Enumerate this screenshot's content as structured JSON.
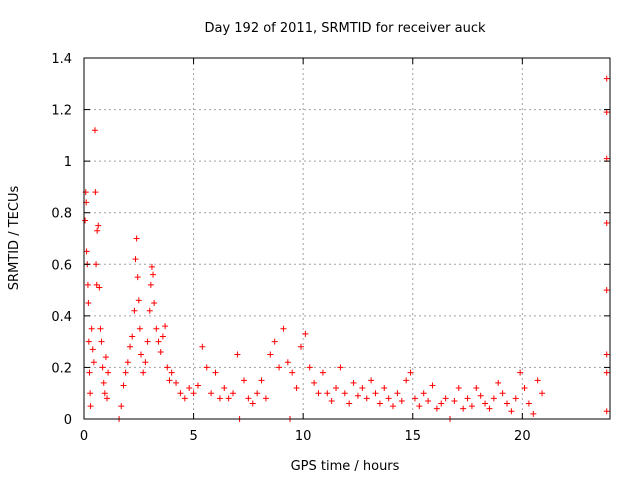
{
  "chart_data": {
    "type": "scatter",
    "title": "Day 192 of 2011, SRMTID for receiver auck",
    "xlabel": "GPS time / hours",
    "ylabel": "SRMTID / TECUs",
    "xlim": [
      0,
      24
    ],
    "ylim": [
      0,
      1.4
    ],
    "xticks": [
      0,
      5,
      10,
      15,
      20
    ],
    "xtick_labels": [
      "0",
      "5",
      "10",
      "15",
      "20"
    ],
    "yticks": [
      0,
      0.2,
      0.4,
      0.6,
      0.8,
      1,
      1.2,
      1.4
    ],
    "ytick_labels": [
      "0",
      "0.2",
      "0.4",
      "0.6",
      "0.8",
      "1",
      "1.2",
      "1.4"
    ],
    "grid": true,
    "marker": "plus",
    "color": "#ff0000",
    "points": [
      [
        0.05,
        0.77
      ],
      [
        0.08,
        0.88
      ],
      [
        0.1,
        0.84
      ],
      [
        0.12,
        0.65
      ],
      [
        0.15,
        0.6
      ],
      [
        0.18,
        0.52
      ],
      [
        0.2,
        0.45
      ],
      [
        0.22,
        0.3
      ],
      [
        0.25,
        0.18
      ],
      [
        0.28,
        0.1
      ],
      [
        0.3,
        0.05
      ],
      [
        0.35,
        0.35
      ],
      [
        0.4,
        0.27
      ],
      [
        0.45,
        0.22
      ],
      [
        0.5,
        1.12
      ],
      [
        0.52,
        0.88
      ],
      [
        0.55,
        0.6
      ],
      [
        0.58,
        0.52
      ],
      [
        0.6,
        0.73
      ],
      [
        0.65,
        0.75
      ],
      [
        0.7,
        0.51
      ],
      [
        0.75,
        0.35
      ],
      [
        0.8,
        0.3
      ],
      [
        0.85,
        0.2
      ],
      [
        0.9,
        0.14
      ],
      [
        0.95,
        0.1
      ],
      [
        1.0,
        0.24
      ],
      [
        1.05,
        0.08
      ],
      [
        1.1,
        0.18
      ],
      [
        1.6,
        0.0
      ],
      [
        1.7,
        0.05
      ],
      [
        1.8,
        0.13
      ],
      [
        1.9,
        0.18
      ],
      [
        2.0,
        0.22
      ],
      [
        2.1,
        0.28
      ],
      [
        2.2,
        0.32
      ],
      [
        2.3,
        0.42
      ],
      [
        2.35,
        0.62
      ],
      [
        2.4,
        0.7
      ],
      [
        2.45,
        0.55
      ],
      [
        2.5,
        0.46
      ],
      [
        2.55,
        0.35
      ],
      [
        2.6,
        0.25
      ],
      [
        2.7,
        0.18
      ],
      [
        2.8,
        0.22
      ],
      [
        2.9,
        0.3
      ],
      [
        3.0,
        0.42
      ],
      [
        3.05,
        0.52
      ],
      [
        3.1,
        0.59
      ],
      [
        3.15,
        0.56
      ],
      [
        3.2,
        0.45
      ],
      [
        3.3,
        0.35
      ],
      [
        3.4,
        0.3
      ],
      [
        3.5,
        0.26
      ],
      [
        3.6,
        0.32
      ],
      [
        3.7,
        0.36
      ],
      [
        3.8,
        0.2
      ],
      [
        3.9,
        0.15
      ],
      [
        4.0,
        0.18
      ],
      [
        4.2,
        0.14
      ],
      [
        4.4,
        0.1
      ],
      [
        4.6,
        0.08
      ],
      [
        4.8,
        0.12
      ],
      [
        5.0,
        0.1
      ],
      [
        5.2,
        0.13
      ],
      [
        5.4,
        0.28
      ],
      [
        5.6,
        0.2
      ],
      [
        5.8,
        0.1
      ],
      [
        6.0,
        0.18
      ],
      [
        6.2,
        0.08
      ],
      [
        6.4,
        0.12
      ],
      [
        6.6,
        0.08
      ],
      [
        6.8,
        0.1
      ],
      [
        7.0,
        0.25
      ],
      [
        7.1,
        0.0
      ],
      [
        7.3,
        0.15
      ],
      [
        7.5,
        0.08
      ],
      [
        7.7,
        0.06
      ],
      [
        7.9,
        0.1
      ],
      [
        8.1,
        0.15
      ],
      [
        8.3,
        0.08
      ],
      [
        8.5,
        0.25
      ],
      [
        8.7,
        0.3
      ],
      [
        8.9,
        0.2
      ],
      [
        9.1,
        0.35
      ],
      [
        9.3,
        0.22
      ],
      [
        9.4,
        0.0
      ],
      [
        9.5,
        0.18
      ],
      [
        9.7,
        0.12
      ],
      [
        9.9,
        0.28
      ],
      [
        10.1,
        0.33
      ],
      [
        10.3,
        0.2
      ],
      [
        10.5,
        0.14
      ],
      [
        10.7,
        0.1
      ],
      [
        10.9,
        0.18
      ],
      [
        11.1,
        0.1
      ],
      [
        11.3,
        0.07
      ],
      [
        11.5,
        0.12
      ],
      [
        11.7,
        0.2
      ],
      [
        11.9,
        0.1
      ],
      [
        12.1,
        0.06
      ],
      [
        12.3,
        0.14
      ],
      [
        12.5,
        0.09
      ],
      [
        12.7,
        0.12
      ],
      [
        12.9,
        0.08
      ],
      [
        13.1,
        0.15
      ],
      [
        13.3,
        0.1
      ],
      [
        13.5,
        0.06
      ],
      [
        13.7,
        0.12
      ],
      [
        13.9,
        0.08
      ],
      [
        14.1,
        0.05
      ],
      [
        14.3,
        0.1
      ],
      [
        14.5,
        0.07
      ],
      [
        14.7,
        0.15
      ],
      [
        14.9,
        0.18
      ],
      [
        15.1,
        0.08
      ],
      [
        15.3,
        0.05
      ],
      [
        15.5,
        0.1
      ],
      [
        15.7,
        0.07
      ],
      [
        15.9,
        0.13
      ],
      [
        16.1,
        0.04
      ],
      [
        16.3,
        0.06
      ],
      [
        16.5,
        0.08
      ],
      [
        16.7,
        0.0
      ],
      [
        16.9,
        0.07
      ],
      [
        17.1,
        0.12
      ],
      [
        17.3,
        0.04
      ],
      [
        17.5,
        0.08
      ],
      [
        17.7,
        0.05
      ],
      [
        17.9,
        0.12
      ],
      [
        18.1,
        0.09
      ],
      [
        18.3,
        0.06
      ],
      [
        18.5,
        0.04
      ],
      [
        18.7,
        0.08
      ],
      [
        18.9,
        0.14
      ],
      [
        19.1,
        0.1
      ],
      [
        19.3,
        0.06
      ],
      [
        19.5,
        0.03
      ],
      [
        19.7,
        0.08
      ],
      [
        19.9,
        0.18
      ],
      [
        20.1,
        0.12
      ],
      [
        20.3,
        0.06
      ],
      [
        20.5,
        0.02
      ],
      [
        20.7,
        0.15
      ],
      [
        20.9,
        0.1
      ],
      [
        23.85,
        1.32
      ],
      [
        23.85,
        1.19
      ],
      [
        23.85,
        1.01
      ],
      [
        23.85,
        0.76
      ],
      [
        23.85,
        0.5
      ],
      [
        23.85,
        0.25
      ],
      [
        23.85,
        0.18
      ],
      [
        23.85,
        0.03
      ]
    ]
  }
}
